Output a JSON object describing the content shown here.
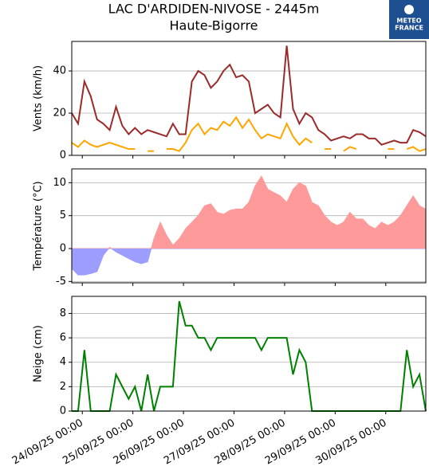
{
  "logo": {
    "lines": [
      "METEO",
      "FRANCE"
    ]
  },
  "chart_data": {
    "title": "LAC D'ARDIDEN-NIVOSE - 2445m",
    "subtitle": "Haute-Bigorre",
    "x": [
      "23/09/25 19:00",
      "23/09/25 22:00",
      "24/09/25 01:00",
      "24/09/25 04:00",
      "24/09/25 07:00",
      "24/09/25 10:00",
      "24/09/25 13:00",
      "24/09/25 16:00",
      "24/09/25 19:00",
      "24/09/25 22:00",
      "25/09/25 01:00",
      "25/09/25 04:00",
      "25/09/25 07:00",
      "25/09/25 10:00",
      "25/09/25 13:00",
      "25/09/25 16:00",
      "25/09/25 19:00",
      "25/09/25 22:00",
      "26/09/25 01:00",
      "26/09/25 04:00",
      "26/09/25 07:00",
      "26/09/25 10:00",
      "26/09/25 13:00",
      "26/09/25 16:00",
      "26/09/25 19:00",
      "26/09/25 22:00",
      "27/09/25 01:00",
      "27/09/25 04:00",
      "27/09/25 07:00",
      "27/09/25 10:00",
      "27/09/25 13:00",
      "27/09/25 16:00",
      "27/09/25 19:00",
      "27/09/25 22:00",
      "28/09/25 01:00",
      "28/09/25 04:00",
      "28/09/25 07:00",
      "28/09/25 10:00",
      "28/09/25 13:00",
      "28/09/25 16:00",
      "28/09/25 19:00",
      "28/09/25 22:00",
      "29/09/25 01:00",
      "29/09/25 04:00",
      "29/09/25 07:00",
      "29/09/25 10:00",
      "29/09/25 13:00",
      "29/09/25 16:00",
      "29/09/25 19:00",
      "29/09/25 22:00",
      "30/09/25 01:00",
      "30/09/25 04:00",
      "30/09/25 07:00",
      "30/09/25 10:00",
      "30/09/25 13:00",
      "30/09/25 16:00",
      "30/09/25 19:00"
    ],
    "xlim": [
      "23/09/25 19:00",
      "30/09/25 19:00"
    ],
    "xticks": [
      "24/09/25 00:00",
      "25/09/25 00:00",
      "26/09/25 00:00",
      "27/09/25 00:00",
      "28/09/25 00:00",
      "29/09/25 00:00",
      "30/09/25 00:00"
    ],
    "panels": [
      {
        "type": "line",
        "ylabel": "Vents (km/h)",
        "ylim": [
          0,
          54
        ],
        "yticks": [
          0,
          20,
          40
        ],
        "grid": true,
        "series": [
          {
            "color": "#9b2a2a",
            "values": [
              20,
              15,
              35,
              28,
              17,
              15,
              12,
              23,
              14,
              10,
              13,
              10,
              12,
              11,
              10,
              9,
              15,
              10,
              10,
              35,
              40,
              38,
              32,
              35,
              40,
              43,
              37,
              38,
              35,
              20,
              22,
              24,
              20,
              18,
              52,
              22,
              15,
              20,
              18,
              12,
              10,
              7,
              8,
              9,
              8,
              10,
              10,
              8,
              8,
              5,
              6,
              7,
              6,
              6,
              12,
              11,
              9
            ]
          },
          {
            "color": "#ffa500",
            "values": [
              6,
              4,
              7,
              5,
              4,
              5,
              6,
              5,
              4,
              3,
              3,
              null,
              2,
              2,
              null,
              3,
              3,
              2,
              6,
              12,
              15,
              10,
              13,
              12,
              16,
              14,
              18,
              13,
              17,
              12,
              8,
              10,
              9,
              8,
              15,
              9,
              5,
              8,
              6,
              null,
              3,
              3,
              null,
              2,
              4,
              3,
              null,
              null,
              null,
              null,
              3,
              3,
              null,
              3,
              4,
              2,
              3
            ]
          }
        ]
      },
      {
        "type": "area",
        "ylabel": "Température (°C)",
        "ylim": [
          -5.2,
          12.1
        ],
        "yticks": [
          -5,
          0,
          5,
          10
        ],
        "grid": true,
        "above_color": "#ff9a9a",
        "below_color": "#9d9dff",
        "series": [
          {
            "values": [
              -3,
              -4,
              -4,
              -3.8,
              -3.5,
              -1,
              0.2,
              -0.5,
              -1,
              -1.5,
              -2,
              -2.3,
              -2,
              1.5,
              4,
              2,
              0.5,
              1.5,
              3,
              4,
              5,
              6.5,
              6.8,
              5.5,
              5.2,
              5.8,
              6,
              6,
              7,
              9.5,
              11,
              9,
              8.5,
              8,
              7,
              9,
              10,
              9.5,
              7,
              6.5,
              5,
              4,
              3.5,
              4,
              5.5,
              4.5,
              4.5,
              3.5,
              3,
              4,
              3.5,
              4,
              5,
              6.5,
              8,
              6.5,
              6
            ]
          }
        ]
      },
      {
        "type": "line",
        "ylabel": "Neige (cm)",
        "ylim": [
          0,
          9.4
        ],
        "yticks": [
          0,
          2,
          4,
          6,
          8
        ],
        "grid": true,
        "series": [
          {
            "color": "#008000",
            "values": [
              0,
              0,
              5,
              0,
              0,
              0,
              0,
              3,
              2,
              1,
              2,
              0,
              3,
              0,
              2,
              2,
              2,
              9,
              7,
              7,
              6,
              6,
              5,
              6,
              6,
              6,
              6,
              6,
              6,
              6,
              5,
              6,
              6,
              6,
              6,
              3,
              5,
              4,
              0,
              0,
              0,
              0,
              0,
              0,
              0,
              0,
              0,
              0,
              0,
              0,
              0,
              0,
              0,
              5,
              2,
              3,
              0
            ]
          }
        ]
      }
    ]
  }
}
